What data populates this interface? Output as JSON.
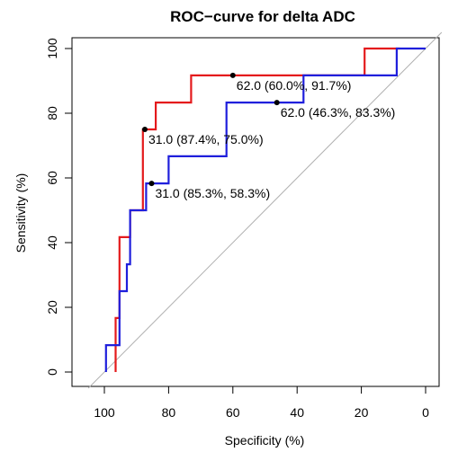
{
  "chart_data": {
    "type": "line",
    "title": "ROC−curve for delta ADC",
    "xlabel": "Specificity (%)",
    "ylabel": "Sensitivity (%)",
    "xlim": [
      100,
      0
    ],
    "ylim": [
      0,
      100
    ],
    "xticks": [
      100,
      80,
      60,
      40,
      20,
      0
    ],
    "yticks": [
      0,
      20,
      40,
      60,
      80,
      100
    ],
    "grid": false,
    "legend": "none",
    "reference_line": {
      "from": [
        100,
        0
      ],
      "to": [
        0,
        100
      ],
      "color": "#b0b0b0"
    },
    "series": [
      {
        "color": "#e41a1c",
        "points": [
          [
            96.5,
            0
          ],
          [
            96.5,
            16.7
          ],
          [
            95.3,
            16.7
          ],
          [
            95.3,
            41.7
          ],
          [
            92.0,
            41.7
          ],
          [
            92.0,
            50.0
          ],
          [
            88.0,
            50.0
          ],
          [
            88.0,
            75.0
          ],
          [
            84.0,
            75.0
          ],
          [
            84.0,
            83.3
          ],
          [
            73.0,
            83.3
          ],
          [
            73.0,
            91.7
          ],
          [
            19.0,
            91.7
          ],
          [
            19.0,
            100
          ],
          [
            8.0,
            100
          ]
        ]
      },
      {
        "color": "#1f1fdc",
        "points": [
          [
            99.5,
            0
          ],
          [
            99.5,
            8.3
          ],
          [
            95.3,
            8.3
          ],
          [
            95.3,
            25.0
          ],
          [
            93.0,
            25.0
          ],
          [
            93.0,
            33.3
          ],
          [
            92.0,
            33.3
          ],
          [
            92.0,
            50.0
          ],
          [
            87.0,
            50.0
          ],
          [
            87.0,
            58.3
          ],
          [
            80.0,
            58.3
          ],
          [
            80.0,
            66.7
          ],
          [
            62.0,
            66.7
          ],
          [
            62.0,
            83.3
          ],
          [
            46.0,
            83.3
          ],
          [
            38.0,
            83.3
          ],
          [
            38.0,
            91.7
          ],
          [
            9.0,
            91.7
          ],
          [
            9.0,
            100
          ],
          [
            0,
            100
          ]
        ]
      }
    ],
    "thresholds": [
      {
        "x": 87.4,
        "y": 75.0,
        "label": "31.0 (87.4%, 75.0%)"
      },
      {
        "x": 85.3,
        "y": 58.3,
        "label": "31.0 (85.3%, 58.3%)"
      },
      {
        "x": 60.0,
        "y": 91.7,
        "label": "62.0 (60.0%, 91.7%)"
      },
      {
        "x": 46.3,
        "y": 83.3,
        "label": "62.0 (46.3%, 83.3%)"
      }
    ]
  }
}
